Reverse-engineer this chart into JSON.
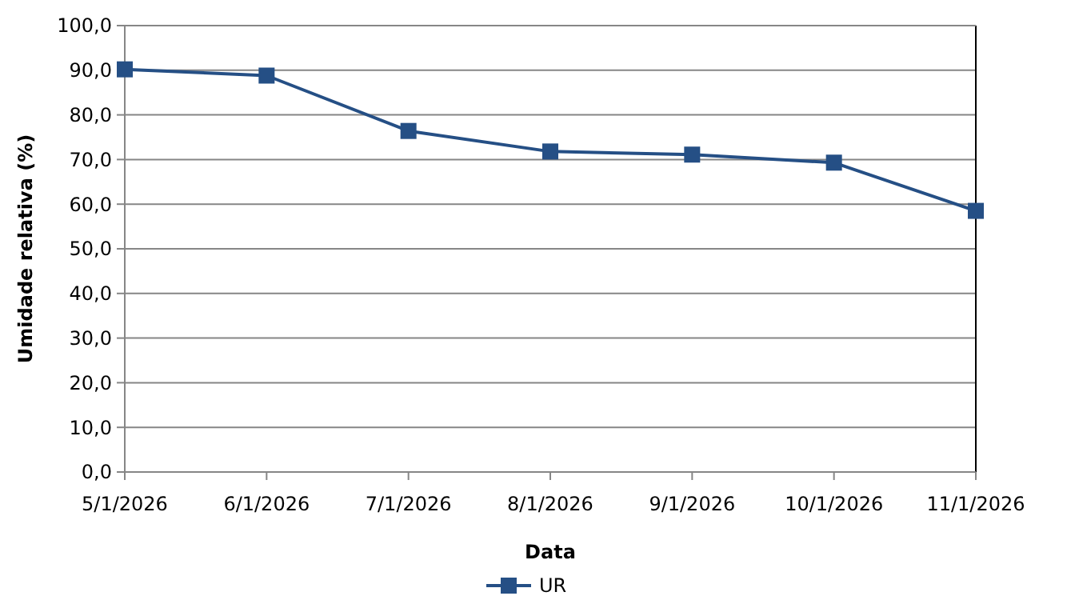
{
  "chart_data": {
    "type": "line",
    "xlabel": "Data",
    "ylabel": "Umidade relativa (%)",
    "categories": [
      "5/1/2026",
      "6/1/2026",
      "7/1/2026",
      "8/1/2026",
      "9/1/2026",
      "10/1/2026",
      "11/1/2026"
    ],
    "series": [
      {
        "name": "UR",
        "color": "#254f85",
        "values": [
          90.2,
          88.8,
          76.4,
          71.8,
          71.1,
          69.3,
          58.5
        ]
      }
    ],
    "ylim": [
      0,
      100
    ],
    "yticks": [
      {
        "value": 0,
        "label": "0,0"
      },
      {
        "value": 10,
        "label": "10,0"
      },
      {
        "value": 20,
        "label": "20,0"
      },
      {
        "value": 30,
        "label": "30,0"
      },
      {
        "value": 40,
        "label": "40,0"
      },
      {
        "value": 50,
        "label": "50,0"
      },
      {
        "value": 60,
        "label": "60,0"
      },
      {
        "value": 70,
        "label": "70,0"
      },
      {
        "value": 80,
        "label": "80,0"
      },
      {
        "value": 90,
        "label": "90,0"
      },
      {
        "value": 100,
        "label": "100,0"
      }
    ],
    "grid": "y",
    "legend": "bottom",
    "marker": "square",
    "line_style": "solid"
  }
}
